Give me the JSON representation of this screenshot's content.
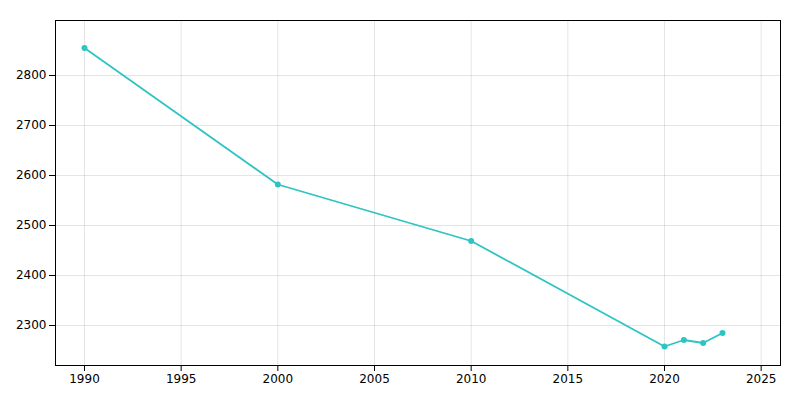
{
  "chart_data": {
    "type": "line",
    "x": [
      1990,
      2000,
      2010,
      2020,
      2021,
      2022,
      2023
    ],
    "values": [
      2855,
      2582,
      2469,
      2258,
      2271,
      2265,
      2285
    ],
    "color": "#2ec4c4",
    "marker": "circle",
    "xlim": [
      1988.5,
      2026
    ],
    "ylim": [
      2220,
      2910
    ],
    "xticks": [
      1990,
      1995,
      2000,
      2005,
      2010,
      2015,
      2020,
      2025
    ],
    "yticks": [
      2300,
      2400,
      2500,
      2600,
      2700,
      2800
    ],
    "grid": true
  }
}
